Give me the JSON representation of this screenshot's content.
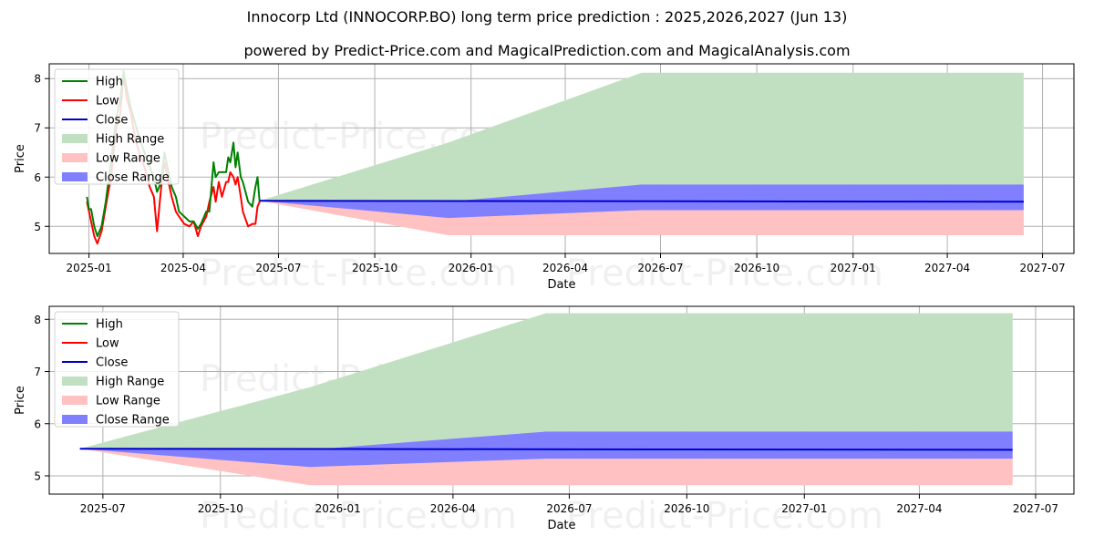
{
  "page": {
    "title": "Innocorp Ltd (INNOCORP.BO) long term price prediction : 2025,2026,2027 (Jun 13)",
    "subtitle": "powered by Predict-Price.com and MagicalPrediction.com and MagicalAnalysis.com",
    "watermark": "Predict-Price.com"
  },
  "colors": {
    "high": "#008000",
    "low": "#ff0000",
    "close": "#0000cc",
    "high_range": "#c1e0c1",
    "low_range": "#ffc1c1",
    "close_range": "#8080ff"
  },
  "legend": [
    "High",
    "Low",
    "Close",
    "High Range",
    "Low Range",
    "Close Range"
  ],
  "chart_data": [
    {
      "type": "line",
      "xlabel": "Date",
      "ylabel": "Price",
      "xlim": [
        "2024-11-24",
        "2027-07-31"
      ],
      "ylim": [
        4.45,
        8.3
      ],
      "x_ticks": [
        "2025-01",
        "2025-04",
        "2025-07",
        "2025-10",
        "2026-01",
        "2026-04",
        "2026-07",
        "2026-10",
        "2027-01",
        "2027-04",
        "2027-07"
      ],
      "y_ticks": [
        5,
        6,
        7,
        8
      ],
      "grid": true,
      "legend_position": "top-left",
      "series": [
        {
          "name": "High",
          "x": [
            "2024-12-30",
            "2025-01-01",
            "2025-01-03",
            "2025-01-06",
            "2025-01-09",
            "2025-01-13",
            "2025-01-17",
            "2025-01-22",
            "2025-01-27",
            "2025-01-31",
            "2025-02-03",
            "2025-02-06",
            "2025-02-10",
            "2025-02-14",
            "2025-02-18",
            "2025-02-23",
            "2025-02-28",
            "2025-03-04",
            "2025-03-07",
            "2025-03-11",
            "2025-03-14",
            "2025-03-18",
            "2025-03-21",
            "2025-03-25",
            "2025-03-28",
            "2025-04-02",
            "2025-04-07",
            "2025-04-11",
            "2025-04-15",
            "2025-04-18",
            "2025-04-23",
            "2025-04-26",
            "2025-04-30",
            "2025-05-02",
            "2025-05-05",
            "2025-05-08",
            "2025-05-12",
            "2025-05-14",
            "2025-05-16",
            "2025-05-19",
            "2025-05-21",
            "2025-05-23",
            "2025-05-26",
            "2025-05-28",
            "2025-06-02",
            "2025-06-06",
            "2025-06-09",
            "2025-06-11",
            "2025-06-13"
          ],
          "y": [
            5.6,
            5.35,
            5.35,
            5.0,
            4.8,
            5.0,
            5.5,
            6.3,
            7.2,
            7.6,
            8.15,
            7.8,
            7.4,
            7.1,
            6.8,
            6.5,
            6.2,
            6.0,
            5.7,
            5.9,
            6.5,
            6.1,
            5.8,
            5.6,
            5.3,
            5.2,
            5.1,
            5.1,
            4.95,
            5.05,
            5.3,
            5.3,
            6.3,
            6.0,
            6.1,
            6.1,
            6.1,
            6.4,
            6.3,
            6.7,
            6.2,
            6.5,
            6.0,
            5.9,
            5.5,
            5.4,
            5.8,
            6.0,
            5.5
          ]
        },
        {
          "name": "Low",
          "x": [
            "2024-12-30",
            "2025-01-01",
            "2025-01-03",
            "2025-01-06",
            "2025-01-09",
            "2025-01-13",
            "2025-01-17",
            "2025-01-22",
            "2025-01-27",
            "2025-01-31",
            "2025-02-03",
            "2025-02-06",
            "2025-02-10",
            "2025-02-14",
            "2025-02-18",
            "2025-02-23",
            "2025-02-28",
            "2025-03-04",
            "2025-03-07",
            "2025-03-11",
            "2025-03-14",
            "2025-03-18",
            "2025-03-21",
            "2025-03-25",
            "2025-03-28",
            "2025-04-02",
            "2025-04-07",
            "2025-04-11",
            "2025-04-15",
            "2025-04-18",
            "2025-04-23",
            "2025-04-26",
            "2025-04-30",
            "2025-05-02",
            "2025-05-05",
            "2025-05-08",
            "2025-05-12",
            "2025-05-14",
            "2025-05-16",
            "2025-05-19",
            "2025-05-21",
            "2025-05-23",
            "2025-05-26",
            "2025-05-28",
            "2025-06-02",
            "2025-06-06",
            "2025-06-09",
            "2025-06-11",
            "2025-06-13"
          ],
          "y": [
            5.5,
            5.3,
            5.1,
            4.8,
            4.65,
            4.9,
            5.4,
            6.0,
            7.0,
            7.3,
            8.1,
            7.6,
            7.3,
            6.8,
            6.5,
            6.2,
            5.8,
            5.6,
            4.9,
            5.8,
            6.3,
            5.9,
            5.6,
            5.3,
            5.2,
            5.05,
            5.0,
            5.1,
            4.8,
            5.0,
            5.2,
            5.5,
            5.8,
            5.5,
            5.9,
            5.6,
            5.9,
            5.9,
            6.1,
            6.0,
            5.85,
            6.0,
            5.6,
            5.3,
            5.0,
            5.05,
            5.05,
            5.4,
            5.5
          ]
        },
        {
          "name": "Close",
          "x": [
            "2025-06-13",
            "2027-06-13"
          ],
          "y": [
            5.52,
            5.5
          ]
        },
        {
          "name": "High Range",
          "x": [
            "2025-06-13",
            "2025-12-10",
            "2026-06-13",
            "2027-06-13"
          ],
          "lower": [
            5.52,
            5.5,
            5.85,
            5.85
          ],
          "upper": [
            5.52,
            6.7,
            8.12,
            8.12
          ]
        },
        {
          "name": "Low Range",
          "x": [
            "2025-06-13",
            "2025-12-10",
            "2026-06-13",
            "2027-06-13"
          ],
          "lower": [
            5.52,
            4.82,
            4.82,
            4.82
          ],
          "upper": [
            5.52,
            5.5,
            5.33,
            5.33
          ]
        },
        {
          "name": "Close Range",
          "x": [
            "2025-06-13",
            "2025-12-10",
            "2026-06-13",
            "2027-06-13"
          ],
          "lower": [
            5.52,
            5.17,
            5.33,
            5.33
          ],
          "upper": [
            5.52,
            5.5,
            5.85,
            5.85
          ]
        }
      ]
    },
    {
      "type": "line",
      "xlabel": "Date",
      "ylabel": "Price",
      "xlim": [
        "2025-05-20",
        "2027-07-31"
      ],
      "ylim": [
        4.65,
        8.25
      ],
      "x_ticks": [
        "2025-07",
        "2025-10",
        "2026-01",
        "2026-04",
        "2026-07",
        "2026-10",
        "2027-01",
        "2027-04",
        "2027-07"
      ],
      "y_ticks": [
        5,
        6,
        7,
        8
      ],
      "grid": true,
      "legend_position": "top-left",
      "series": [
        {
          "name": "Close",
          "x": [
            "2025-06-13",
            "2027-06-13"
          ],
          "y": [
            5.52,
            5.5
          ]
        },
        {
          "name": "High Range",
          "x": [
            "2025-06-13",
            "2025-12-10",
            "2026-06-13",
            "2027-06-13"
          ],
          "lower": [
            5.52,
            5.5,
            5.85,
            5.85
          ],
          "upper": [
            5.52,
            6.7,
            8.12,
            8.12
          ]
        },
        {
          "name": "Low Range",
          "x": [
            "2025-06-13",
            "2025-12-10",
            "2026-06-13",
            "2027-06-13"
          ],
          "lower": [
            5.52,
            4.82,
            4.82,
            4.82
          ],
          "upper": [
            5.52,
            5.5,
            5.33,
            5.33
          ]
        },
        {
          "name": "Close Range",
          "x": [
            "2025-06-13",
            "2025-12-10",
            "2026-06-13",
            "2027-06-13"
          ],
          "lower": [
            5.52,
            5.17,
            5.33,
            5.33
          ],
          "upper": [
            5.52,
            5.5,
            5.85,
            5.85
          ]
        }
      ]
    }
  ]
}
